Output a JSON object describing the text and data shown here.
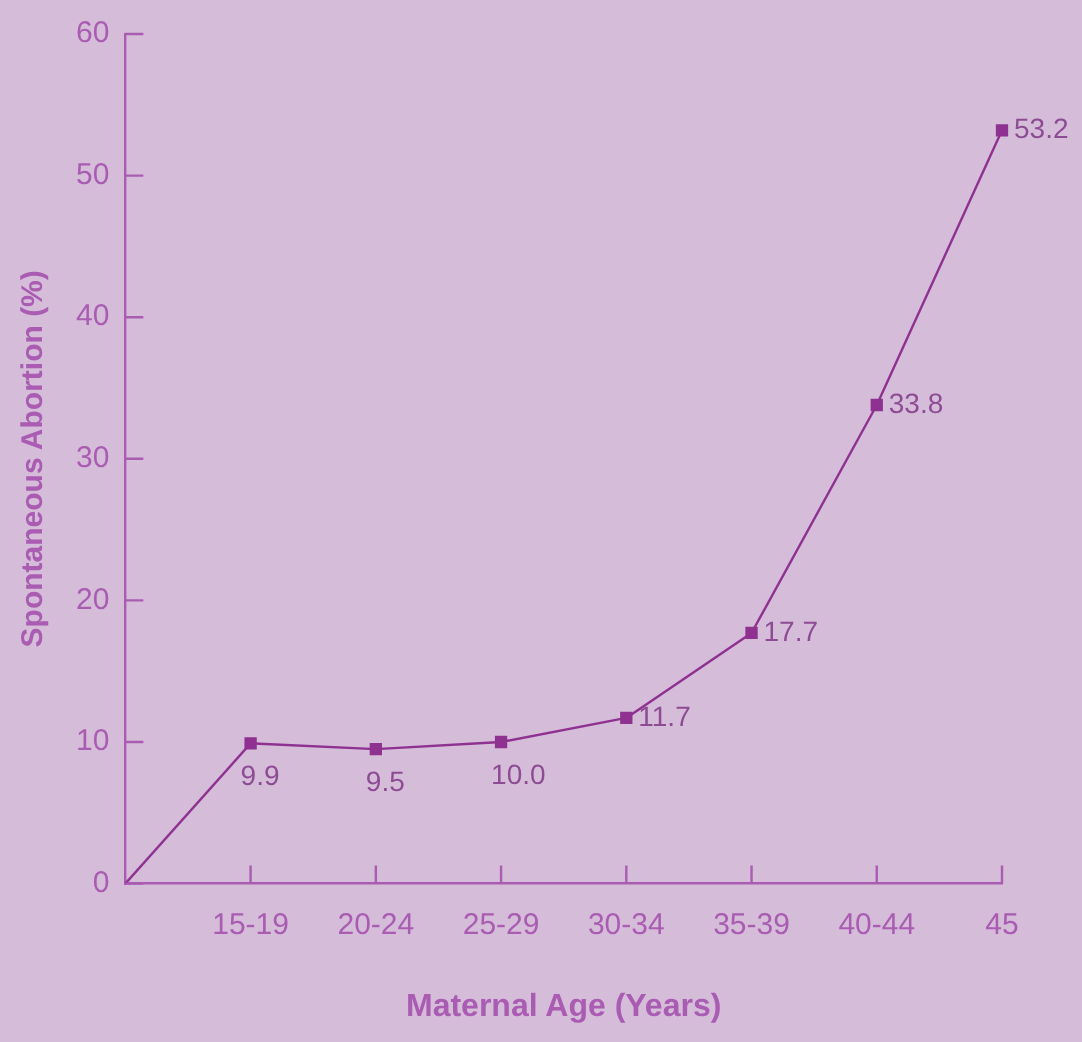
{
  "chart_data": {
    "type": "line",
    "xlabel": "Maternal Age (Years)",
    "ylabel": "Spontaneous Abortion (%)",
    "categories": [
      null,
      "15-19",
      "20-24",
      "25-29",
      "30-34",
      "35-39",
      "40-44",
      "45"
    ],
    "ylim": [
      0,
      60
    ],
    "yticks": [
      0,
      10,
      20,
      30,
      40,
      50,
      60
    ],
    "grid": false,
    "legend": false,
    "series": [
      {
        "color": "#8e3190",
        "marker": "none",
        "values": [
          0,
          9.9,
          null,
          null,
          null,
          null,
          null,
          null
        ]
      },
      {
        "color": "#8e3190",
        "marker": "square",
        "values": [
          null,
          9.9,
          9.5,
          10.0,
          11.7,
          17.7,
          33.8,
          53.2
        ],
        "value_labels": [
          null,
          "9.9",
          "9.5",
          "10.0",
          "11.7",
          "17.7",
          "33.8",
          "53.2"
        ]
      }
    ]
  }
}
